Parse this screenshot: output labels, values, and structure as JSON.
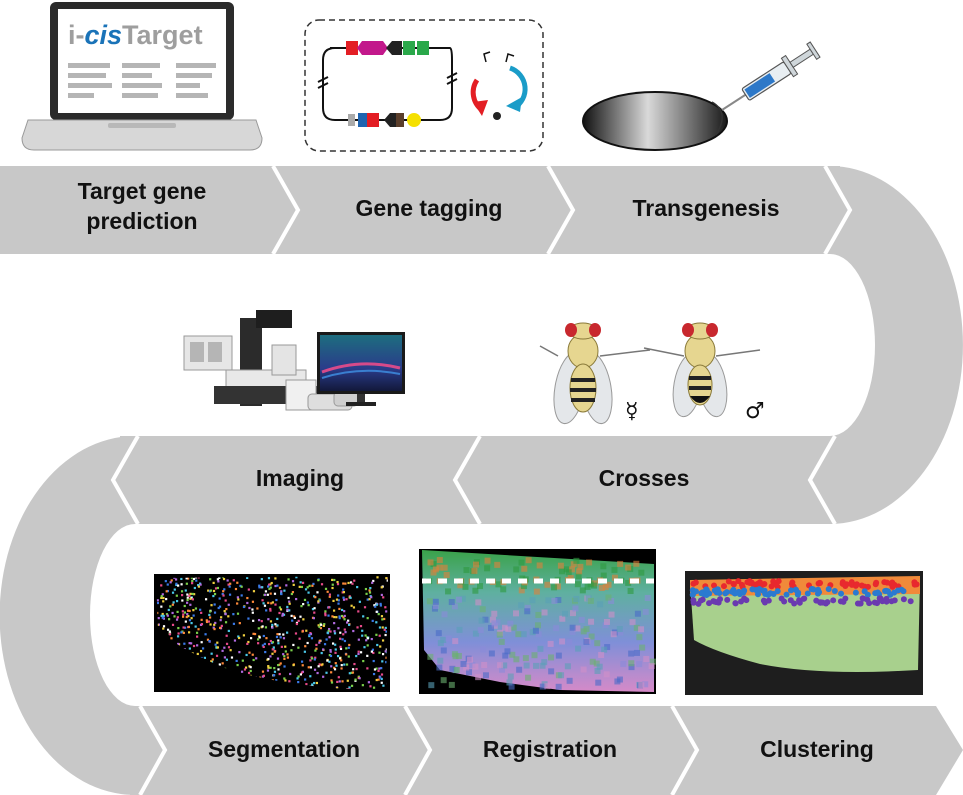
{
  "steps": {
    "target_gene_prediction": {
      "line1": "Target gene",
      "line2": "prediction"
    },
    "gene_tagging": "Gene tagging",
    "transgenesis": "Transgenesis",
    "imaging": "Imaging",
    "crosses": "Crosses",
    "segmentation": "Segmentation",
    "registration": "Registration",
    "clustering": "Clustering"
  },
  "laptop_screen": {
    "brand_prefix": "i-",
    "brand_italic": "cis",
    "brand_suffix": "Target"
  },
  "fly_symbols": {
    "female": "☿",
    "male": "♂"
  },
  "colors": {
    "band": "#c8c8c8",
    "chevron_border": "#ffffff",
    "brand_grey": "#9e9e9e",
    "brand_blue": "#1a73b8",
    "clustering_bg": "#a8d08d"
  }
}
